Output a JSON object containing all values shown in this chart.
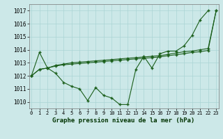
{
  "title": "Graphe pression niveau de la mer (hPa)",
  "background_color": "#cce8e8",
  "grid_color": "#aad4d4",
  "line_color": "#1a5e1a",
  "xlim": [
    -0.3,
    23.3
  ],
  "ylim": [
    1009.5,
    1017.5
  ],
  "yticks": [
    1010,
    1011,
    1012,
    1013,
    1014,
    1015,
    1016,
    1017
  ],
  "xticks": [
    0,
    1,
    2,
    3,
    4,
    5,
    6,
    7,
    8,
    9,
    10,
    11,
    12,
    13,
    14,
    15,
    16,
    17,
    18,
    19,
    20,
    21,
    22,
    23
  ],
  "series_zigzag_x": [
    0,
    1,
    2,
    3,
    4,
    5,
    6,
    7,
    8,
    9,
    10,
    11,
    12,
    13,
    14,
    15,
    16,
    17,
    18,
    19,
    20,
    21,
    22
  ],
  "series_zigzag_y": [
    1012.0,
    1013.8,
    1012.6,
    1012.2,
    1011.5,
    1011.2,
    1011.0,
    1010.1,
    1011.1,
    1010.5,
    1010.3,
    1009.8,
    1009.8,
    1012.5,
    1013.5,
    1012.6,
    1013.7,
    1013.9,
    1013.9,
    1014.3,
    1015.1,
    1016.3,
    1017.0
  ],
  "series_mid_x": [
    0,
    1,
    2,
    3,
    4,
    5,
    6,
    7,
    8,
    9,
    10,
    11,
    12,
    13,
    14,
    15,
    16,
    17,
    18,
    19,
    20,
    21,
    22,
    23
  ],
  "series_mid_y": [
    1012.0,
    1012.5,
    1012.6,
    1012.8,
    1012.9,
    1013.0,
    1013.05,
    1013.1,
    1013.15,
    1013.2,
    1013.25,
    1013.3,
    1013.35,
    1013.4,
    1013.45,
    1013.5,
    1013.55,
    1013.65,
    1013.75,
    1013.85,
    1013.9,
    1014.0,
    1014.1,
    1017.0
  ],
  "series_low_x": [
    0,
    1,
    2,
    3,
    4,
    5,
    6,
    7,
    8,
    9,
    10,
    11,
    12,
    13,
    14,
    15,
    16,
    17,
    18,
    19,
    20,
    21,
    22,
    23
  ],
  "series_low_y": [
    1012.0,
    1012.5,
    1012.6,
    1012.75,
    1012.85,
    1012.9,
    1012.95,
    1013.0,
    1013.05,
    1013.1,
    1013.15,
    1013.2,
    1013.25,
    1013.3,
    1013.35,
    1013.4,
    1013.45,
    1013.55,
    1013.62,
    1013.7,
    1013.8,
    1013.85,
    1013.95,
    1017.0
  ]
}
